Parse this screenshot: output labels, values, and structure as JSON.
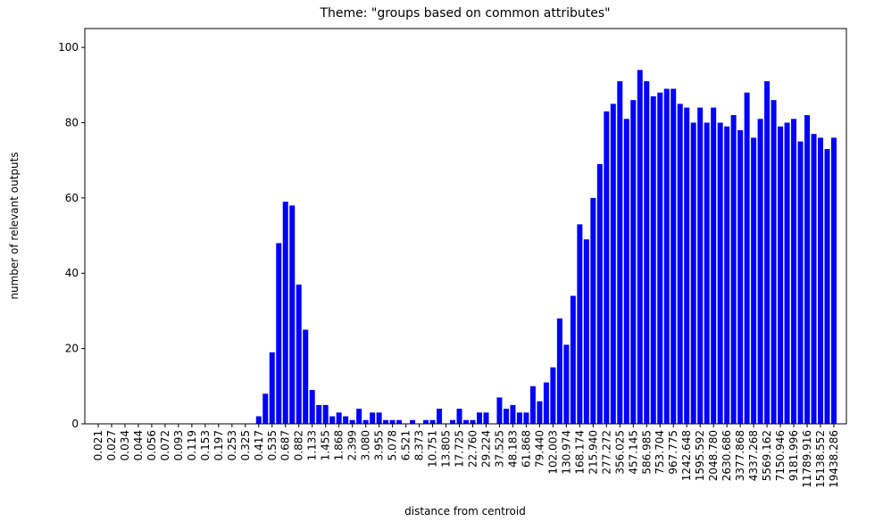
{
  "chart_data": {
    "type": "bar",
    "title": "Theme: \"groups based on common attributes\"",
    "x_label": "distance from centroid",
    "y_label": "number of relevant outputs",
    "color": "#0000ff",
    "categories": [
      "0.021",
      null,
      "0.027",
      null,
      "0.034",
      null,
      "0.044",
      null,
      "0.056",
      null,
      "0.072",
      null,
      "0.093",
      null,
      "0.119",
      null,
      "0.153",
      null,
      "0.197",
      null,
      "0.253",
      null,
      "0.325",
      null,
      "0.417",
      null,
      "0.535",
      null,
      "0.687",
      null,
      "0.882",
      null,
      "1.133",
      null,
      "1.455",
      null,
      "1.868",
      null,
      "2.399",
      null,
      "3.080",
      null,
      "3.955",
      null,
      "5.078",
      null,
      "6.521",
      null,
      "8.373",
      null,
      "10.751",
      null,
      "13.805",
      null,
      "17.725",
      null,
      "22.760",
      null,
      "29.224",
      null,
      "37.525",
      null,
      "48.183",
      null,
      "61.868",
      null,
      "79.440",
      null,
      "102.003",
      null,
      "130.974",
      null,
      "168.174",
      null,
      "215.940",
      null,
      "277.272",
      null,
      "356.025",
      null,
      "457.145",
      null,
      "586.985",
      null,
      "753.704",
      null,
      "967.775",
      null,
      "1242.648",
      null,
      "1595.592",
      null,
      "2048.780",
      null,
      "2630.686",
      null,
      "3377.868",
      null,
      "4337.268",
      null,
      "5569.162",
      null,
      "7150.946",
      null,
      "9181.996",
      null,
      "11789.916",
      null,
      "15138.552",
      null,
      "19438.286"
    ],
    "values": [
      0,
      0,
      0,
      0,
      0,
      0,
      0,
      0,
      0,
      0,
      0,
      0,
      0,
      0,
      0,
      0,
      0,
      0,
      0,
      0,
      0,
      0,
      0,
      0,
      2,
      8,
      19,
      48,
      59,
      58,
      37,
      25,
      9,
      5,
      5,
      2,
      3,
      2,
      1,
      4,
      1,
      3,
      3,
      1,
      1,
      1,
      0,
      1,
      0,
      1,
      1,
      4,
      0,
      1,
      4,
      1,
      1,
      3,
      3,
      0,
      7,
      4,
      5,
      3,
      3,
      10,
      6,
      11,
      15,
      28,
      21,
      34,
      53,
      49,
      60,
      69,
      83,
      85,
      91,
      81,
      86,
      94,
      91,
      87,
      88,
      89,
      89,
      85,
      84,
      80,
      84,
      80,
      84,
      80,
      79,
      82,
      78,
      88,
      76,
      81,
      91,
      86,
      79,
      80,
      81,
      75,
      82,
      77,
      76,
      73,
      76
    ],
    "ylim": [
      0,
      105
    ],
    "yticks": [
      0,
      20,
      40,
      60,
      80,
      100
    ]
  }
}
